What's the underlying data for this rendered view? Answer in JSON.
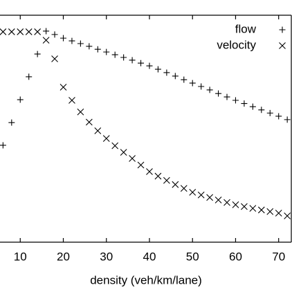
{
  "chart_data": {
    "type": "scatter",
    "x_label": "density (veh/km/lane)",
    "x": [
      6,
      8,
      10,
      12,
      14,
      16,
      18,
      20,
      22,
      24,
      26,
      28,
      30,
      32,
      34,
      36,
      38,
      40,
      42,
      44,
      46,
      48,
      50,
      52,
      54,
      56,
      58,
      60,
      62,
      64,
      66,
      68,
      70,
      72
    ],
    "series": [
      {
        "name": "flow",
        "marker": "plus",
        "color": "#000000",
        "values": [
          42.7,
          52.7,
          62.8,
          72.9,
          82.9,
          93.0,
          91.5,
          89.9,
          88.7,
          87.5,
          86.3,
          85.0,
          83.8,
          82.6,
          81.4,
          80.2,
          78.9,
          77.7,
          76.2,
          74.7,
          73.2,
          71.6,
          70.1,
          68.6,
          67.1,
          65.5,
          64.0,
          62.5,
          61.1,
          59.7,
          58.3,
          56.9,
          55.5,
          54.0
        ]
      },
      {
        "name": "velocity",
        "marker": "cross",
        "color": "#000000",
        "values": [
          92.7,
          92.7,
          92.7,
          92.7,
          92.7,
          89.0,
          80.8,
          68.3,
          62.5,
          57.4,
          52.9,
          49.1,
          45.7,
          42.5,
          39.6,
          36.9,
          34.0,
          31.1,
          29.1,
          27.2,
          25.4,
          23.7,
          22.0,
          20.8,
          19.7,
          18.6,
          17.5,
          16.5,
          15.7,
          14.9,
          14.2,
          13.5,
          12.8,
          11.6
        ]
      }
    ],
    "xlim": [
      5.3,
      73.1
    ],
    "xticks": [
      10,
      20,
      30,
      40,
      50,
      60,
      70
    ],
    "ylim": [
      0,
      100
    ],
    "legend": "top-right"
  }
}
